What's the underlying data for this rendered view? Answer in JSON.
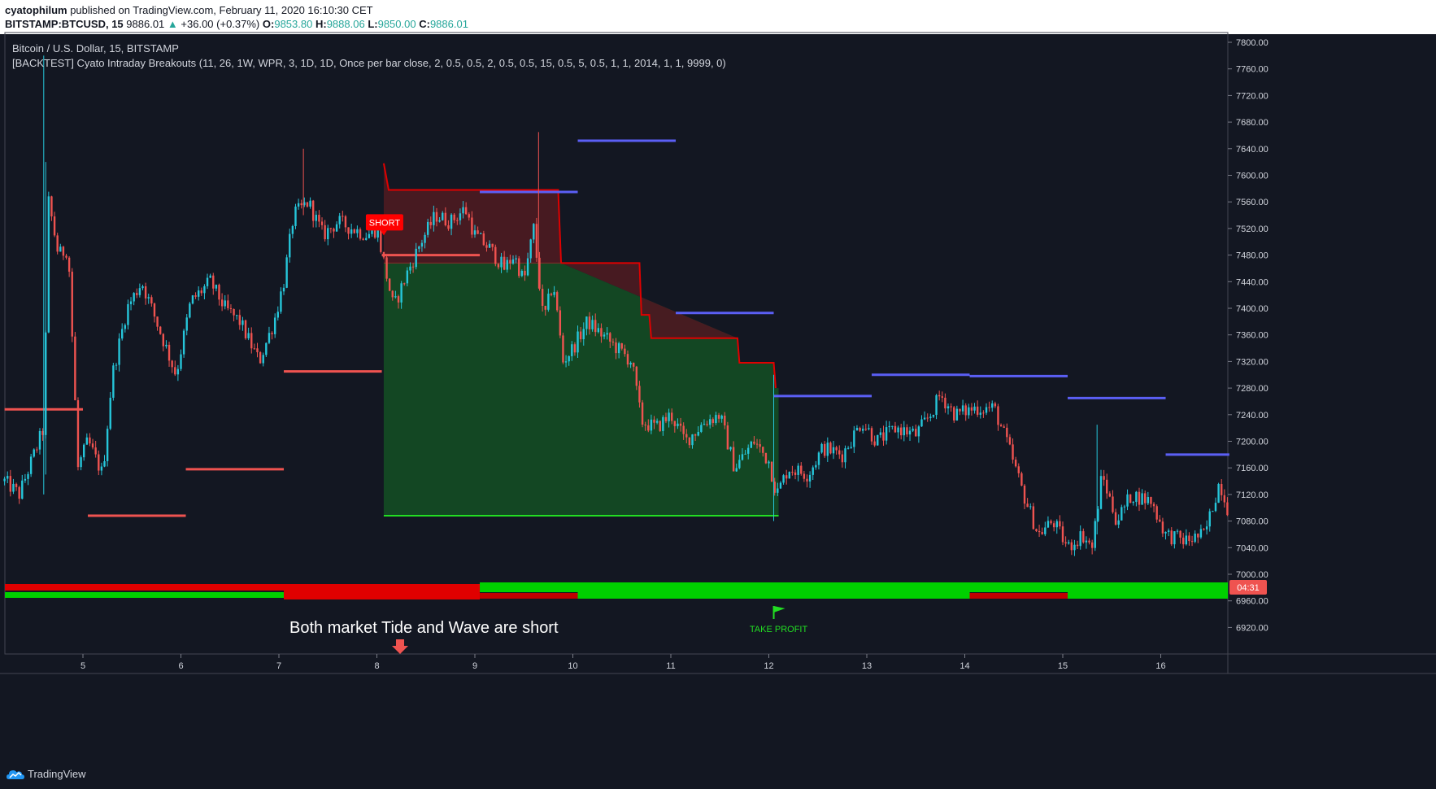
{
  "header": {
    "author": "cyatophilum",
    "published_text": "published on TradingView.com, February 11, 2020 16:10:30 CET",
    "symbol": "BITSTAMP:BTCUSD, 15",
    "last_price": "9886.01",
    "change": "+36.00 (+0.37%)",
    "ohlc": {
      "o_label": "O:",
      "o": "9853.80",
      "h_label": "H:",
      "h": "9888.06",
      "l_label": "L:",
      "l": "9850.00",
      "c_label": "C:",
      "c": "9886.01"
    }
  },
  "legend": {
    "title": "Bitcoin / U.S. Dollar, 15, BITSTAMP",
    "indicator": "[BACKTEST] Cyato Intraday Breakouts (11, 26, 1W, WPR, 3, 1D, 1D, Once per bar close, 2, 0.5, 0.5, 2, 0.5, 0.5, 15, 0.5, 5, 0.5, 1, 1, 2014, 1, 1, 9999, 0)"
  },
  "footer": {
    "brand": "TradingView"
  },
  "colors": {
    "bg": "#131722",
    "up": "#26c6da",
    "down": "#ef5350",
    "blue": "#5b5ff5",
    "green_fill": "#134a24",
    "red_fill": "#4a1a22",
    "tide_red": "#e00000",
    "tide_green": "#00d000"
  },
  "chart_data": {
    "type": "candlestick",
    "x_ticks": [
      "5",
      "6",
      "7",
      "8",
      "9",
      "10",
      "11",
      "12",
      "13",
      "14",
      "15",
      "16"
    ],
    "ylim": [
      6885,
      7820
    ],
    "y_ticks": [
      "7800.00",
      "7760.00",
      "7720.00",
      "7680.00",
      "7640.00",
      "7600.00",
      "7560.00",
      "7520.00",
      "7480.00",
      "7440.00",
      "7400.00",
      "7360.00",
      "7320.00",
      "7280.00",
      "7240.00",
      "7200.00",
      "7160.00",
      "7120.00",
      "7080.00",
      "7040.00",
      "7000.00",
      "6960.00",
      "6920.00"
    ],
    "current_price_tag": "04:31",
    "close_path": [
      [
        4.2,
        7140
      ],
      [
        4.35,
        7120
      ],
      [
        4.5,
        7180
      ],
      [
        4.6,
        7220
      ],
      [
        4.65,
        7560
      ],
      [
        4.75,
        7480
      ],
      [
        4.85,
        7490
      ],
      [
        4.95,
        7160
      ],
      [
        5.05,
        7200
      ],
      [
        5.2,
        7150
      ],
      [
        5.3,
        7300
      ],
      [
        5.45,
        7400
      ],
      [
        5.6,
        7440
      ],
      [
        5.8,
        7360
      ],
      [
        5.95,
        7300
      ],
      [
        6.1,
        7410
      ],
      [
        6.3,
        7440
      ],
      [
        6.45,
        7400
      ],
      [
        6.6,
        7380
      ],
      [
        6.8,
        7320
      ],
      [
        6.95,
        7380
      ],
      [
        7.05,
        7440
      ],
      [
        7.15,
        7540
      ],
      [
        7.3,
        7560
      ],
      [
        7.45,
        7510
      ],
      [
        7.6,
        7530
      ],
      [
        7.75,
        7520
      ],
      [
        7.9,
        7510
      ],
      [
        8.0,
        7520
      ],
      [
        8.07,
        7470
      ],
      [
        8.17,
        7400
      ],
      [
        8.3,
        7450
      ],
      [
        8.45,
        7500
      ],
      [
        8.6,
        7540
      ],
      [
        8.75,
        7530
      ],
      [
        8.9,
        7550
      ],
      [
        9.0,
        7510
      ],
      [
        9.15,
        7490
      ],
      [
        9.3,
        7460
      ],
      [
        9.4,
        7480
      ],
      [
        9.5,
        7440
      ],
      [
        9.6,
        7520
      ],
      [
        9.7,
        7380
      ],
      [
        9.8,
        7440
      ],
      [
        9.9,
        7320
      ],
      [
        10.0,
        7340
      ],
      [
        10.15,
        7380
      ],
      [
        10.3,
        7360
      ],
      [
        10.45,
        7340
      ],
      [
        10.6,
        7320
      ],
      [
        10.7,
        7230
      ],
      [
        10.85,
        7220
      ],
      [
        11.0,
        7240
      ],
      [
        11.15,
        7200
      ],
      [
        11.35,
        7230
      ],
      [
        11.5,
        7240
      ],
      [
        11.65,
        7160
      ],
      [
        11.85,
        7200
      ],
      [
        12.0,
        7170
      ],
      [
        12.08,
        7120
      ],
      [
        12.2,
        7160
      ],
      [
        12.4,
        7150
      ],
      [
        12.55,
        7190
      ],
      [
        12.75,
        7180
      ],
      [
        12.95,
        7230
      ],
      [
        13.1,
        7200
      ],
      [
        13.3,
        7220
      ],
      [
        13.5,
        7210
      ],
      [
        13.65,
        7240
      ],
      [
        13.75,
        7270
      ],
      [
        13.9,
        7240
      ],
      [
        14.1,
        7250
      ],
      [
        14.3,
        7250
      ],
      [
        14.45,
        7190
      ],
      [
        14.6,
        7120
      ],
      [
        14.75,
        7060
      ],
      [
        14.9,
        7080
      ],
      [
        15.05,
        7040
      ],
      [
        15.2,
        7060
      ],
      [
        15.3,
        7040
      ],
      [
        15.4,
        7150
      ],
      [
        15.55,
        7080
      ],
      [
        15.7,
        7120
      ],
      [
        15.9,
        7110
      ],
      [
        16.05,
        7060
      ],
      [
        16.25,
        7050
      ],
      [
        16.45,
        7060
      ],
      [
        16.6,
        7140
      ],
      [
        16.7,
        7090
      ]
    ],
    "levels_red": [
      [
        4.2,
        5.0,
        7248
      ],
      [
        5.05,
        6.05,
        7088
      ],
      [
        6.05,
        7.05,
        7158
      ],
      [
        7.05,
        8.05,
        7305
      ],
      [
        8.05,
        9.05,
        7480
      ]
    ],
    "levels_blue": [
      [
        9.05,
        10.05,
        7575
      ],
      [
        10.05,
        11.05,
        7652
      ],
      [
        11.05,
        12.05,
        7393
      ],
      [
        12.05,
        13.05,
        7268
      ],
      [
        13.05,
        14.05,
        7300
      ],
      [
        14.05,
        15.05,
        7298
      ],
      [
        15.05,
        16.05,
        7265
      ],
      [
        16.05,
        16.7,
        7180
      ]
    ],
    "trade": {
      "entry_label": "SHORT",
      "exit_label": "TAKE PROFIT",
      "entry_x": 8.07,
      "entry_price": 7468,
      "exit_x": 12.1,
      "target_price": 7088
    },
    "stop_steps": [
      [
        8.07,
        7618
      ],
      [
        8.12,
        7578
      ],
      [
        9.85,
        7578
      ],
      [
        9.88,
        7468
      ],
      [
        10.68,
        7468
      ],
      [
        10.7,
        7390
      ],
      [
        10.78,
        7390
      ],
      [
        10.8,
        7355
      ],
      [
        11.68,
        7355
      ],
      [
        11.7,
        7318
      ],
      [
        12.05,
        7318
      ],
      [
        12.07,
        7280
      ]
    ],
    "tide_label": "Both market Tide and Wave are short"
  }
}
